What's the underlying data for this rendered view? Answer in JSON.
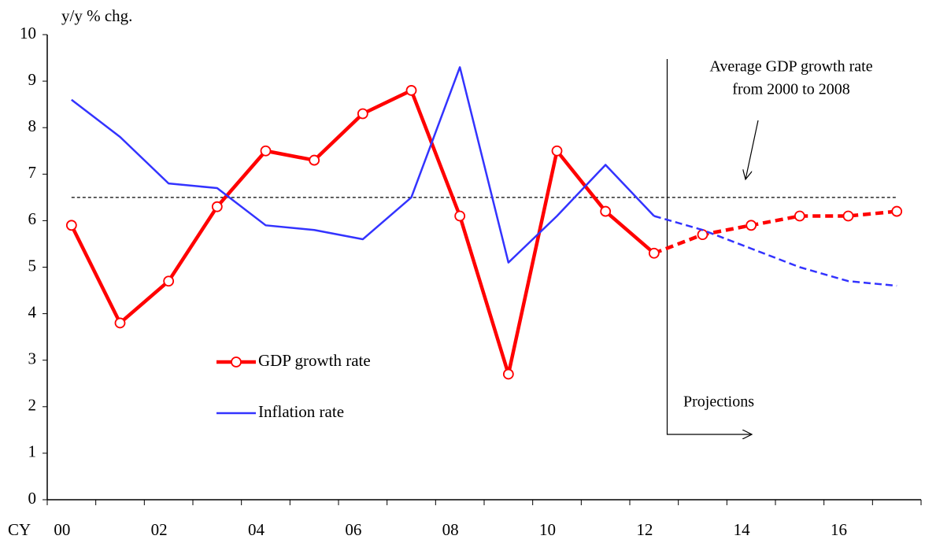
{
  "chart_data": {
    "type": "line",
    "y_label": "y/y % chg.",
    "x_label": "CY",
    "categories": [
      "00",
      null,
      "02",
      null,
      "04",
      null,
      "06",
      null,
      "08",
      null,
      "10",
      null,
      "12",
      null,
      "14",
      null,
      "16",
      null
    ],
    "series": [
      {
        "name": "GDP growth rate",
        "color": "#ff0000",
        "markers": true,
        "dashed_from": 12,
        "values": [
          5.9,
          3.8,
          4.7,
          6.3,
          7.5,
          7.3,
          8.3,
          8.8,
          6.1,
          2.7,
          7.5,
          6.2,
          5.3,
          5.7,
          5.9,
          6.1,
          6.1,
          6.2
        ]
      },
      {
        "name": "Inflation rate",
        "color": "#3333ff",
        "markers": false,
        "dashed_from": 12,
        "values": [
          8.6,
          7.8,
          6.8,
          6.7,
          5.9,
          5.8,
          5.6,
          6.5,
          9.3,
          5.1,
          6.1,
          7.2,
          6.1,
          5.8,
          5.4,
          5.0,
          4.7,
          4.6
        ]
      }
    ],
    "ylim": [
      0,
      10
    ],
    "yticks": [
      0,
      1,
      2,
      3,
      4,
      5,
      6,
      7,
      8,
      9,
      10
    ],
    "reference_line": {
      "value": 6.5,
      "label_lines": [
        "Average GDP growth rate",
        "from 2000 to 2008"
      ]
    },
    "projection_label": "Projections"
  }
}
